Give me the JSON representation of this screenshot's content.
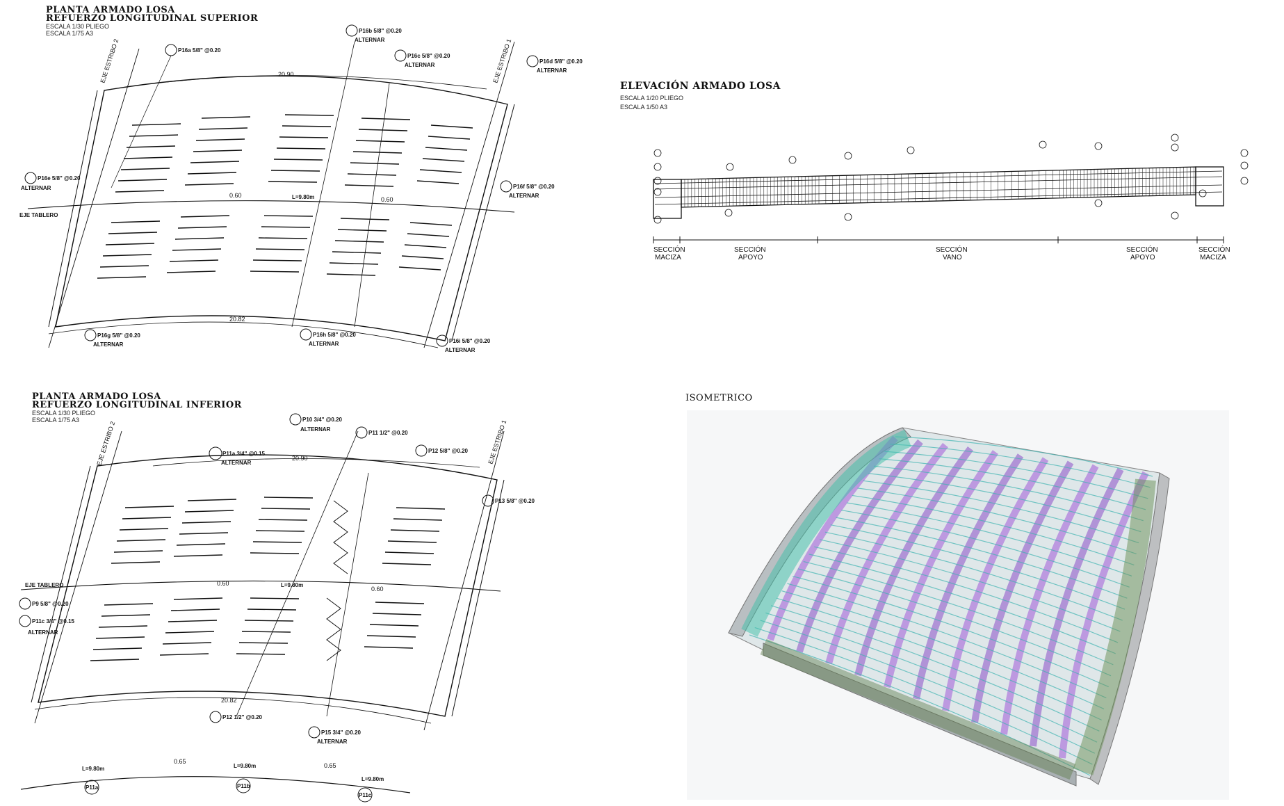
{
  "plan_superior": {
    "title_line1": "PLANTA ARMADO LOSA",
    "title_line2": "REFUERZO LONGITUDINAL SUPERIOR",
    "scale1": "ESCALA 1/30 PLIEGO",
    "scale2": "ESCALA 1/75 A3",
    "axis_estribo_2": "EJE ESTRIBO 2",
    "axis_estribo_1": "EJE ESTRIBO 1",
    "axis_tablero": "EJE TABLERO",
    "dim_top": "20.90",
    "dim_bottom": "20.82",
    "dim_mid1": "0.60",
    "dim_mid2": "0.60",
    "dim_len": "L=9.80m",
    "tag_p16a": "P16a 5/8\" @0.20",
    "tag_p16b": "P16b 5/8\" @0.20",
    "tag_p16c": "P16c 5/8\" @0.20",
    "tag_p16d": "P16d 5/8\" @0.20",
    "tag_p16e": "P16e 5/8\" @0.20",
    "tag_p16f": "P16f 5/8\" @0.20",
    "tag_p16g": "P16g 5/8\" @0.20",
    "tag_p16h": "P16h 5/8\" @0.20",
    "tag_p16i": "P16i 5/8\" @0.20",
    "alternar": "ALTERNAR"
  },
  "elevacion": {
    "title": "ELEVACIÓN ARMADO LOSA",
    "scale1": "ESCALA 1/20 PLIEGO",
    "scale2": "ESCALA 1/50 A3",
    "sections": [
      {
        "line1": "SECCIÓN",
        "line2": "MACIZA"
      },
      {
        "line1": "SECCIÓN",
        "line2": "APOYO"
      },
      {
        "line1": "SECCIÓN",
        "line2": "VANO"
      },
      {
        "line1": "SECCIÓN",
        "line2": "APOYO"
      },
      {
        "line1": "SECCIÓN",
        "line2": "MACIZA"
      }
    ]
  },
  "plan_inferior": {
    "title_line1": "PLANTA ARMADO LOSA",
    "title_line2": "REFUERZO LONGITUDINAL INFERIOR",
    "scale1": "ESCALA 1/30 PLIEGO",
    "scale2": "ESCALA 1/75 A3",
    "axis_estribo_2": "EJE ESTRIBO 2",
    "axis_estribo_1": "EJE ESTRIBO 1",
    "axis_tablero": "EJE TABLERO",
    "dim_top": "20.90",
    "dim_bottom": "20.82",
    "dim_mid1": "0.60",
    "dim_mid2": "0.60",
    "dim_len": "L=9.80m",
    "tag_a": "P11a 3/4\" @0.15",
    "tag_b": "P10 3/4\" @0.20",
    "tag_c": "P11 1/2\" @0.20",
    "tag_d": "P12 5/8\" @0.20",
    "tag_e": "P13 5/8\" @0.20",
    "tag_f": "P9 5/8\" @0.20",
    "tag_g": "P11c 3/4\" @0.15",
    "tag_h": "P12 1/2\" @0.20",
    "tag_i": "P15 3/4\" @0.20",
    "alternar": "ALTERNAR",
    "strip_dim1": "L=9.80m",
    "strip_dim2": "0.65",
    "strip_dim3": "L=9.80m",
    "strip_dim4": "0.65",
    "strip_dim5": "L=9.80m",
    "strip_tag1": "P11a",
    "strip_tag2": "P11b",
    "strip_tag3": "P11c"
  },
  "isometrico": {
    "title": "ISOMETRICO"
  }
}
